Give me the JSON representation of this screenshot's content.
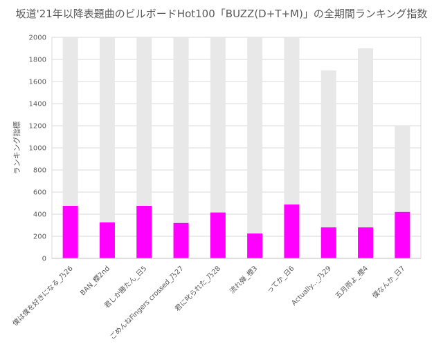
{
  "chart_data": {
    "type": "bar",
    "title": "坂道'21年以降表題曲のビルボードHot100「BUZZ(D+T+M)」の全期間ランキング指数",
    "xlabel": "",
    "ylabel": "ランキング指標",
    "ylim": [
      0,
      2000
    ],
    "yticks": [
      0,
      200,
      400,
      600,
      800,
      1000,
      1200,
      1400,
      1600,
      1800,
      2000
    ],
    "grid": true,
    "categories": [
      "僕は僕を好きになる_乃26",
      "BAN_櫻2nd",
      "君しか勝たん_日5",
      "ごめんねFingers crossed_乃27",
      "君に叱られた_乃28",
      "流れ弾_櫻3",
      "ってか_日6",
      "Actually..._乃29",
      "五月雨よ_櫻4",
      "僕なんか_日7"
    ],
    "series": [
      {
        "color": "#e8e8e8",
        "values": [
          2000,
          2000,
          2000,
          2000,
          2000,
          2000,
          2000,
          1700,
          1900,
          1200
        ]
      },
      {
        "color": "#ff00ff",
        "values": [
          475,
          325,
          475,
          320,
          415,
          225,
          487,
          280,
          280,
          420
        ]
      }
    ]
  }
}
